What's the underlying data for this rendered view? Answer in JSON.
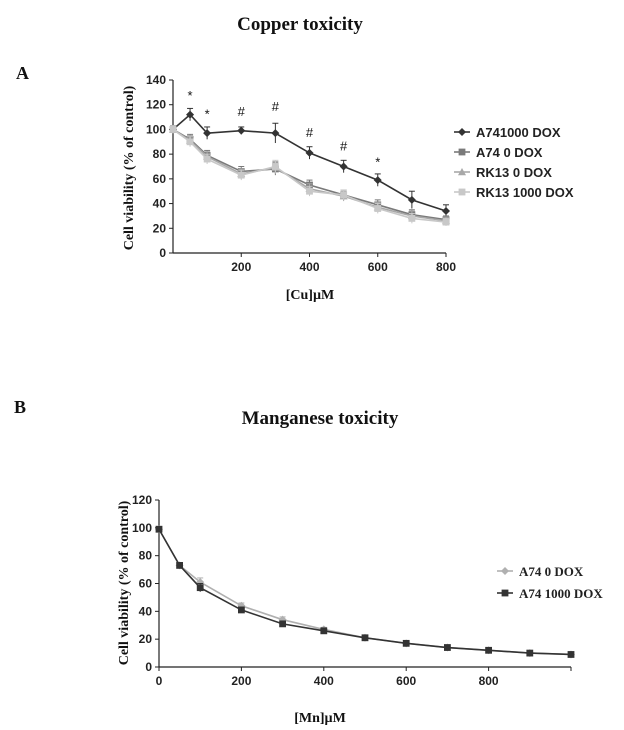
{
  "panel_a": {
    "letter": "A"
  },
  "panel_b": {
    "letter": "B"
  },
  "chart_data": [
    {
      "type": "line",
      "title": "Copper toxicity",
      "xlabel": "[Cu]µM",
      "ylabel": "Cell viability (% of control)",
      "xlim": [
        0,
        800
      ],
      "ylim": [
        0,
        140
      ],
      "x_ticks": [
        200,
        400,
        600,
        800
      ],
      "y_ticks": [
        0,
        20,
        40,
        60,
        80,
        100,
        120,
        140
      ],
      "grid": false,
      "legend_position": "right",
      "series": [
        {
          "name": "A741000 DOX",
          "color": "#333333",
          "marker": "diamond",
          "x": [
            0,
            50,
            100,
            200,
            300,
            400,
            500,
            600,
            700,
            800
          ],
          "y": [
            100,
            112,
            97,
            99,
            97,
            81,
            70,
            59,
            43,
            34
          ],
          "err": [
            3,
            5,
            5,
            3,
            8,
            5,
            5,
            5,
            7,
            5
          ]
        },
        {
          "name": "A74 0 DOX",
          "color": "#7a7a7a",
          "marker": "square",
          "x": [
            0,
            50,
            100,
            200,
            300,
            400,
            500,
            600,
            700,
            800
          ],
          "y": [
            100,
            92,
            79,
            66,
            68,
            55,
            47,
            39,
            31,
            27
          ],
          "err": [
            3,
            4,
            4,
            4,
            5,
            4,
            4,
            4,
            4,
            3
          ]
        },
        {
          "name": "RK13 0 DOX",
          "color": "#a8a8a8",
          "marker": "triangle",
          "x": [
            0,
            50,
            100,
            200,
            300,
            400,
            500,
            600,
            700,
            800
          ],
          "y": [
            100,
            91,
            78,
            64,
            69,
            52,
            46,
            37,
            30,
            26
          ],
          "err": [
            3,
            4,
            4,
            4,
            5,
            4,
            4,
            4,
            4,
            3
          ]
        },
        {
          "name": "RK13 1000 DOX",
          "color": "#c8c8c8",
          "marker": "square",
          "x": [
            0,
            50,
            100,
            200,
            300,
            400,
            500,
            600,
            700,
            800
          ],
          "y": [
            100,
            90,
            76,
            63,
            70,
            50,
            47,
            36,
            28,
            25
          ],
          "err": [
            3,
            4,
            4,
            4,
            5,
            4,
            4,
            4,
            4,
            3
          ]
        }
      ],
      "annotations": [
        {
          "x": 50,
          "y": 124,
          "text": "*"
        },
        {
          "x": 100,
          "y": 109,
          "text": "*"
        },
        {
          "x": 200,
          "y": 111,
          "text": "#"
        },
        {
          "x": 300,
          "y": 115,
          "text": "#"
        },
        {
          "x": 400,
          "y": 94,
          "text": "#"
        },
        {
          "x": 500,
          "y": 83,
          "text": "#"
        },
        {
          "x": 600,
          "y": 70,
          "text": "*"
        }
      ]
    },
    {
      "type": "line",
      "title": "Manganese toxicity",
      "xlabel": "[Mn]µM",
      "ylabel": "Cell viability (% of control)",
      "xlim": [
        0,
        1000
      ],
      "ylim": [
        0,
        120
      ],
      "x_ticks": [
        0,
        200,
        400,
        600,
        800
      ],
      "y_ticks": [
        0,
        20,
        40,
        60,
        80,
        100,
        120
      ],
      "grid": false,
      "legend_position": "right",
      "series": [
        {
          "name": "A74  0 DOX",
          "color": "#b0b0b0",
          "marker": "diamond",
          "x": [
            0,
            50,
            100,
            200,
            300,
            400,
            500,
            600,
            700,
            800,
            900,
            1000
          ],
          "y": [
            99,
            73,
            61,
            44,
            34,
            27,
            21,
            17,
            14,
            12,
            10,
            9
          ],
          "err": [
            1.5,
            2,
            3,
            2,
            2,
            1.5,
            1.5,
            1,
            1,
            1,
            0.8,
            0.5
          ]
        },
        {
          "name": "A74 1000 DOX",
          "color": "#333333",
          "marker": "square",
          "x": [
            0,
            50,
            100,
            200,
            300,
            400,
            500,
            600,
            700,
            800,
            900,
            1000
          ],
          "y": [
            99,
            73,
            57,
            41,
            31,
            26,
            21,
            17,
            14,
            12,
            10,
            9
          ],
          "err": [
            1.5,
            2,
            3,
            2,
            2,
            1.5,
            1.5,
            1,
            1,
            1,
            0.8,
            0.5
          ]
        }
      ]
    }
  ]
}
